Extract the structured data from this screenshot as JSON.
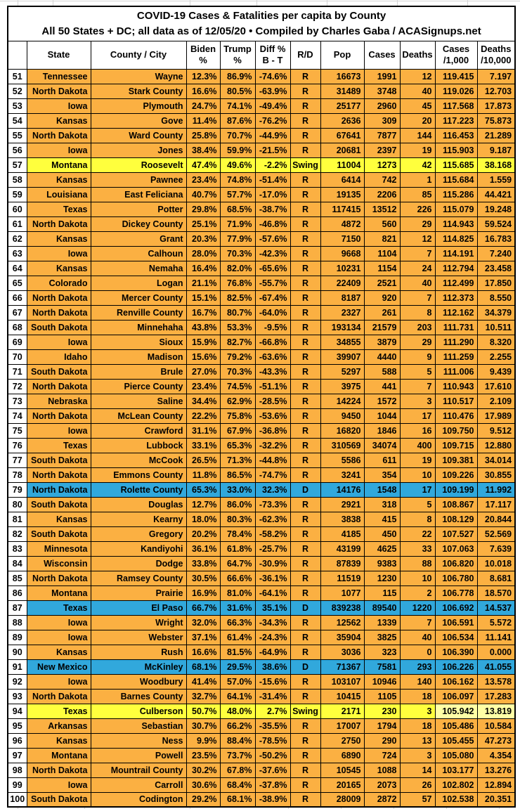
{
  "chart_data": {
    "type": "table",
    "title": "COVID-19 Cases & Fatalities per capita by County",
    "subtitle": "All 50 States + DC; all data as of 12/05/20 • Compiled by Charles Gaba / ACASignups.net",
    "columns": [
      "",
      "State",
      "County / City",
      "Biden\n%",
      "Trump\n%",
      "Diff %\nB - T",
      "R/D",
      "Pop",
      "Cases",
      "Deaths",
      "Cases\n/1,000",
      "Deaths\n/10,000"
    ],
    "rows": [
      [
        51,
        "Tennessee",
        "Wayne",
        "12.3%",
        "86.9%",
        "-74.6%",
        "R",
        "16673",
        "1991",
        "12",
        "119.415",
        "7.197"
      ],
      [
        52,
        "North Dakota",
        "Stark County",
        "16.6%",
        "80.5%",
        "-63.9%",
        "R",
        "31489",
        "3748",
        "40",
        "119.026",
        "12.703"
      ],
      [
        53,
        "Iowa",
        "Plymouth",
        "24.7%",
        "74.1%",
        "-49.4%",
        "R",
        "25177",
        "2960",
        "45",
        "117.568",
        "17.873"
      ],
      [
        54,
        "Kansas",
        "Gove",
        "11.4%",
        "87.6%",
        "-76.2%",
        "R",
        "2636",
        "309",
        "20",
        "117.223",
        "75.873"
      ],
      [
        55,
        "North Dakota",
        "Ward County",
        "25.8%",
        "70.7%",
        "-44.9%",
        "R",
        "67641",
        "7877",
        "144",
        "116.453",
        "21.289"
      ],
      [
        56,
        "Iowa",
        "Jones",
        "38.4%",
        "59.9%",
        "-21.5%",
        "R",
        "20681",
        "2397",
        "19",
        "115.903",
        "9.187"
      ],
      [
        57,
        "Montana",
        "Roosevelt",
        "47.4%",
        "49.6%",
        "-2.2%",
        "Swing",
        "11004",
        "1273",
        "42",
        "115.685",
        "38.168"
      ],
      [
        58,
        "Kansas",
        "Pawnee",
        "23.4%",
        "74.8%",
        "-51.4%",
        "R",
        "6414",
        "742",
        "1",
        "115.684",
        "1.559"
      ],
      [
        59,
        "Louisiana",
        "East Feliciana",
        "40.7%",
        "57.7%",
        "-17.0%",
        "R",
        "19135",
        "2206",
        "85",
        "115.286",
        "44.421"
      ],
      [
        60,
        "Texas",
        "Potter",
        "29.8%",
        "68.5%",
        "-38.7%",
        "R",
        "117415",
        "13512",
        "226",
        "115.079",
        "19.248"
      ],
      [
        61,
        "North Dakota",
        "Dickey County",
        "25.1%",
        "71.9%",
        "-46.8%",
        "R",
        "4872",
        "560",
        "29",
        "114.943",
        "59.524"
      ],
      [
        62,
        "Kansas",
        "Grant",
        "20.3%",
        "77.9%",
        "-57.6%",
        "R",
        "7150",
        "821",
        "12",
        "114.825",
        "16.783"
      ],
      [
        63,
        "Iowa",
        "Calhoun",
        "28.0%",
        "70.3%",
        "-42.3%",
        "R",
        "9668",
        "1104",
        "7",
        "114.191",
        "7.240"
      ],
      [
        64,
        "Kansas",
        "Nemaha",
        "16.4%",
        "82.0%",
        "-65.6%",
        "R",
        "10231",
        "1154",
        "24",
        "112.794",
        "23.458"
      ],
      [
        65,
        "Colorado",
        "Logan",
        "21.1%",
        "76.8%",
        "-55.7%",
        "R",
        "22409",
        "2521",
        "40",
        "112.499",
        "17.850"
      ],
      [
        66,
        "North Dakota",
        "Mercer County",
        "15.1%",
        "82.5%",
        "-67.4%",
        "R",
        "8187",
        "920",
        "7",
        "112.373",
        "8.550"
      ],
      [
        67,
        "North Dakota",
        "Renville County",
        "16.7%",
        "80.7%",
        "-64.0%",
        "R",
        "2327",
        "261",
        "8",
        "112.162",
        "34.379"
      ],
      [
        68,
        "South Dakota",
        "Minnehaha",
        "43.8%",
        "53.3%",
        "-9.5%",
        "R",
        "193134",
        "21579",
        "203",
        "111.731",
        "10.511"
      ],
      [
        69,
        "Iowa",
        "Sioux",
        "15.9%",
        "82.7%",
        "-66.8%",
        "R",
        "34855",
        "3879",
        "29",
        "111.290",
        "8.320"
      ],
      [
        70,
        "Idaho",
        "Madison",
        "15.6%",
        "79.2%",
        "-63.6%",
        "R",
        "39907",
        "4440",
        "9",
        "111.259",
        "2.255"
      ],
      [
        71,
        "South Dakota",
        "Brule",
        "27.0%",
        "70.3%",
        "-43.3%",
        "R",
        "5297",
        "588",
        "5",
        "111.006",
        "9.439"
      ],
      [
        72,
        "North Dakota",
        "Pierce County",
        "23.4%",
        "74.5%",
        "-51.1%",
        "R",
        "3975",
        "441",
        "7",
        "110.943",
        "17.610"
      ],
      [
        73,
        "Nebraska",
        "Saline",
        "34.4%",
        "62.9%",
        "-28.5%",
        "R",
        "14224",
        "1572",
        "3",
        "110.517",
        "2.109"
      ],
      [
        74,
        "North Dakota",
        "McLean County",
        "22.2%",
        "75.8%",
        "-53.6%",
        "R",
        "9450",
        "1044",
        "17",
        "110.476",
        "17.989"
      ],
      [
        75,
        "Iowa",
        "Crawford",
        "31.1%",
        "67.9%",
        "-36.8%",
        "R",
        "16820",
        "1846",
        "16",
        "109.750",
        "9.512"
      ],
      [
        76,
        "Texas",
        "Lubbock",
        "33.1%",
        "65.3%",
        "-32.2%",
        "R",
        "310569",
        "34074",
        "400",
        "109.715",
        "12.880"
      ],
      [
        77,
        "South Dakota",
        "McCook",
        "26.5%",
        "71.3%",
        "-44.8%",
        "R",
        "5586",
        "611",
        "19",
        "109.381",
        "34.014"
      ],
      [
        78,
        "North Dakota",
        "Emmons County",
        "11.8%",
        "86.5%",
        "-74.7%",
        "R",
        "3241",
        "354",
        "10",
        "109.226",
        "30.855"
      ],
      [
        79,
        "North Dakota",
        "Rolette County",
        "65.3%",
        "33.0%",
        "32.3%",
        "D",
        "14176",
        "1548",
        "17",
        "109.199",
        "11.992"
      ],
      [
        80,
        "South Dakota",
        "Douglas",
        "12.7%",
        "86.0%",
        "-73.3%",
        "R",
        "2921",
        "318",
        "5",
        "108.867",
        "17.117"
      ],
      [
        81,
        "Kansas",
        "Kearny",
        "18.0%",
        "80.3%",
        "-62.3%",
        "R",
        "3838",
        "415",
        "8",
        "108.129",
        "20.844"
      ],
      [
        82,
        "South Dakota",
        "Gregory",
        "20.2%",
        "78.4%",
        "-58.2%",
        "R",
        "4185",
        "450",
        "22",
        "107.527",
        "52.569"
      ],
      [
        83,
        "Minnesota",
        "Kandiyohi",
        "36.1%",
        "61.8%",
        "-25.7%",
        "R",
        "43199",
        "4625",
        "33",
        "107.063",
        "7.639"
      ],
      [
        84,
        "Wisconsin",
        "Dodge",
        "33.8%",
        "64.7%",
        "-30.9%",
        "R",
        "87839",
        "9383",
        "88",
        "106.820",
        "10.018"
      ],
      [
        85,
        "North Dakota",
        "Ramsey County",
        "30.5%",
        "66.6%",
        "-36.1%",
        "R",
        "11519",
        "1230",
        "10",
        "106.780",
        "8.681"
      ],
      [
        86,
        "Montana",
        "Prairie",
        "16.9%",
        "81.0%",
        "-64.1%",
        "R",
        "1077",
        "115",
        "2",
        "106.778",
        "18.570"
      ],
      [
        87,
        "Texas",
        "El Paso",
        "66.7%",
        "31.6%",
        "35.1%",
        "D",
        "839238",
        "89540",
        "1220",
        "106.692",
        "14.537"
      ],
      [
        88,
        "Iowa",
        "Wright",
        "32.0%",
        "66.3%",
        "-34.3%",
        "R",
        "12562",
        "1339",
        "7",
        "106.591",
        "5.572"
      ],
      [
        89,
        "Iowa",
        "Webster",
        "37.1%",
        "61.4%",
        "-24.3%",
        "R",
        "35904",
        "3825",
        "40",
        "106.534",
        "11.141"
      ],
      [
        90,
        "Kansas",
        "Rush",
        "16.6%",
        "81.5%",
        "-64.9%",
        "R",
        "3036",
        "323",
        "0",
        "106.390",
        "0.000"
      ],
      [
        91,
        "New Mexico",
        "McKinley",
        "68.1%",
        "29.5%",
        "38.6%",
        "D",
        "71367",
        "7581",
        "293",
        "106.226",
        "41.055"
      ],
      [
        92,
        "Iowa",
        "Woodbury",
        "41.4%",
        "57.0%",
        "-15.6%",
        "R",
        "103107",
        "10946",
        "140",
        "106.162",
        "13.578"
      ],
      [
        93,
        "North Dakota",
        "Barnes County",
        "32.7%",
        "64.1%",
        "-31.4%",
        "R",
        "10415",
        "1105",
        "18",
        "106.097",
        "17.283"
      ],
      [
        94,
        "Texas",
        "Culberson",
        "50.7%",
        "48.0%",
        "2.7%",
        "Swing",
        "2171",
        "230",
        "3",
        "105.942",
        "13.819"
      ],
      [
        95,
        "Arkansas",
        "Sebastian",
        "30.7%",
        "66.2%",
        "-35.5%",
        "R",
        "17007",
        "1794",
        "18",
        "105.486",
        "10.584"
      ],
      [
        96,
        "Kansas",
        "Ness",
        "9.9%",
        "88.4%",
        "-78.5%",
        "R",
        "2750",
        "290",
        "13",
        "105.455",
        "47.273"
      ],
      [
        97,
        "Montana",
        "Powell",
        "23.5%",
        "73.7%",
        "-50.2%",
        "R",
        "6890",
        "724",
        "3",
        "105.080",
        "4.354"
      ],
      [
        98,
        "North Dakota",
        "Mountrail County",
        "30.2%",
        "67.8%",
        "-37.6%",
        "R",
        "10545",
        "1088",
        "14",
        "103.177",
        "13.276"
      ],
      [
        99,
        "Iowa",
        "Carroll",
        "30.6%",
        "68.4%",
        "-37.8%",
        "R",
        "20165",
        "2073",
        "26",
        "102.802",
        "12.894"
      ],
      [
        100,
        "South Dakota",
        "Codington",
        "29.2%",
        "68.1%",
        "-38.9%",
        "R",
        "28009",
        "2872",
        "57",
        "102.538",
        "20.351"
      ]
    ],
    "layout": {
      "grid": "all-borders",
      "rank_range": "51-100"
    }
  },
  "cell_names": [
    "row-rank",
    "state-cell",
    "county-cell",
    "biden-pct-cell",
    "trump-pct-cell",
    "diff-pct-cell",
    "party-cell",
    "pop-cell",
    "cases-cell",
    "deaths-cell",
    "cases-per-1000-cell",
    "deaths-per-10000-cell"
  ],
  "shading": {
    "r_row": "#FBB042",
    "swing_row": "#FFFF3D",
    "d_row": "#31A8DC",
    "rank_cell": "#FFFFFF",
    "header_cell": "#FFFFFF",
    "overrides": [
      {
        "rank": 94,
        "cells": {
          "10": "#FFFFA6",
          "11": "#FFFFA6"
        }
      }
    ]
  }
}
